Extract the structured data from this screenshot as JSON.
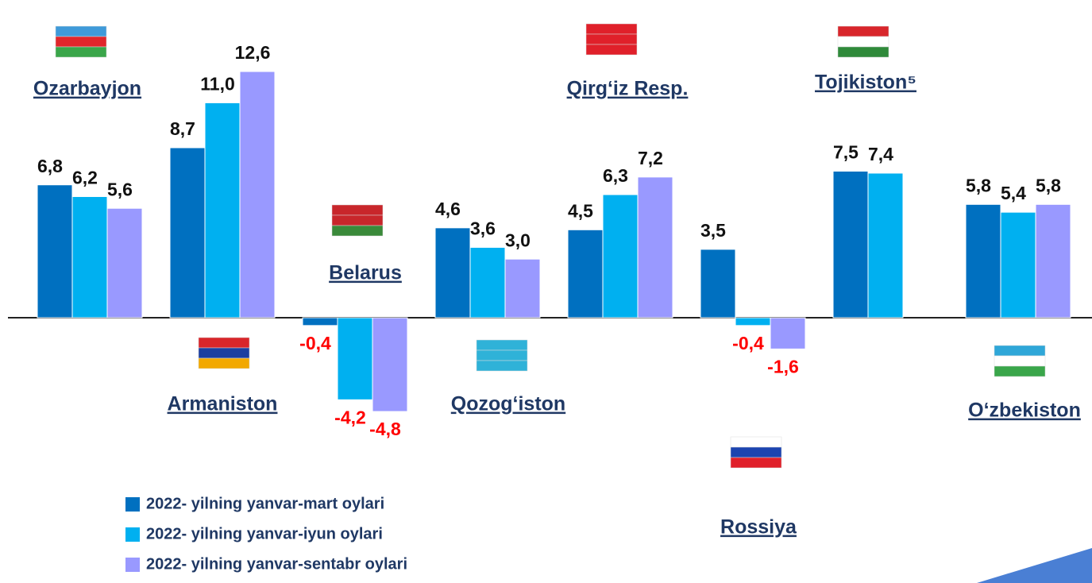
{
  "chart_data": {
    "type": "bar",
    "categories": [
      "Ozarbayjon",
      "Armaniston",
      "Belarus",
      "Qozog‘iston",
      "Qirg‘iz Resp.",
      "Rossiya",
      "Tojikiston⁵",
      "O‘zbekiston"
    ],
    "series": [
      {
        "name": "2022- yilning yanvar-mart oylari",
        "color": "#0070c0",
        "values": [
          6.8,
          8.7,
          -0.4,
          4.6,
          4.5,
          3.5,
          7.5,
          5.8
        ],
        "value_labels": [
          "6,8",
          "8,7",
          "-0,4",
          "4,6",
          "4,5",
          "3,5",
          "7,5",
          "5,8"
        ]
      },
      {
        "name": "2022- yilning yanvar-iyun oylari",
        "color": "#00b0f0",
        "values": [
          6.2,
          11.0,
          -4.2,
          3.6,
          6.3,
          -0.4,
          7.4,
          5.4
        ],
        "value_labels": [
          "6,2",
          "11,0",
          "-4,2",
          "3,6",
          "6,3",
          "-0,4",
          "7,4",
          "5,4"
        ]
      },
      {
        "name": "2022- yilning yanvar-sentabr oylari",
        "color": "#9999ff",
        "values": [
          5.6,
          12.6,
          -4.8,
          3.0,
          7.2,
          -1.6,
          null,
          5.8
        ],
        "value_labels": [
          "5,6",
          "12,6",
          "-4,8",
          "3,0",
          "7,2",
          "-1,6",
          null,
          "5,8"
        ]
      }
    ]
  }
}
